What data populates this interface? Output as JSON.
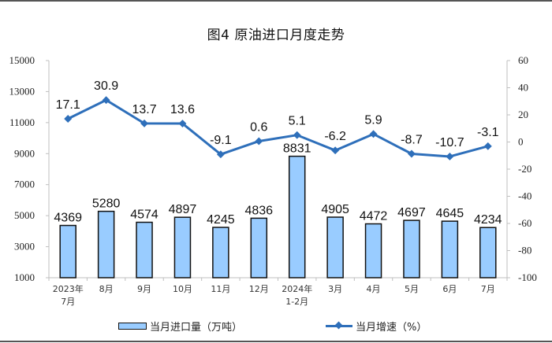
{
  "title": "图4  原油进口月度走势",
  "legend": {
    "bar_label": "当月进口量（万吨）",
    "line_label": "当月增速（%）"
  },
  "colors": {
    "bar_fill": "#99ccff",
    "bar_stroke": "#111111",
    "line": "#2e6fba",
    "axis": "#bfbfbf"
  },
  "chart_data": {
    "type": "bar+line",
    "title": "图4  原油进口月度走势",
    "categories": [
      "2023年\n7月",
      "8月",
      "9月",
      "10月",
      "11月",
      "12月",
      "2024年\n1-2月",
      "3月",
      "4月",
      "5月",
      "6月",
      "7月"
    ],
    "series": [
      {
        "name": "当月进口量（万吨）",
        "type": "bar",
        "axis": "left",
        "values": [
          4369,
          5280,
          4574,
          4897,
          4245,
          4836,
          8831,
          4905,
          4472,
          4697,
          4645,
          4234
        ]
      },
      {
        "name": "当月增速（%）",
        "type": "line",
        "axis": "right",
        "values": [
          17.1,
          30.9,
          13.7,
          13.6,
          -9.1,
          0.6,
          5.1,
          -6.2,
          5.9,
          -8.7,
          -10.7,
          -3.1
        ]
      }
    ],
    "left_axis": {
      "ylim": [
        1000,
        15000
      ],
      "ticks": [
        1000,
        3000,
        5000,
        7000,
        9000,
        11000,
        13000,
        15000
      ]
    },
    "right_axis": {
      "ylim": [
        -100,
        60
      ],
      "ticks": [
        -100,
        -80,
        -60,
        -40,
        -20,
        0,
        20,
        40,
        60
      ]
    },
    "grid": false,
    "legend_position": "bottom"
  }
}
